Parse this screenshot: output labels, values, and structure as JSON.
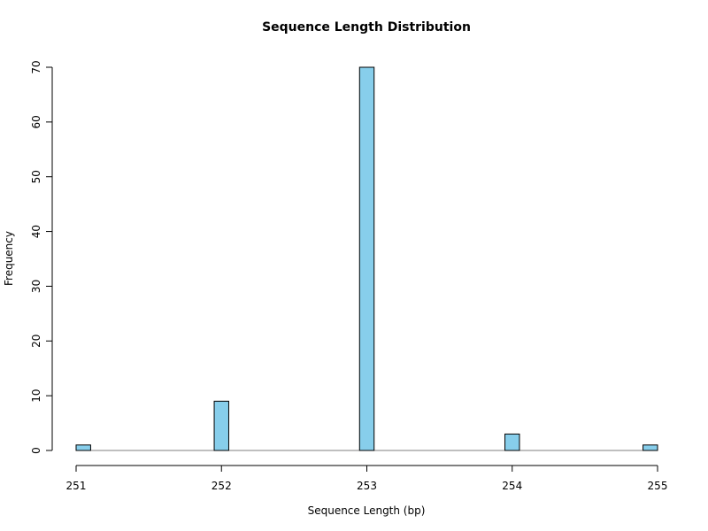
{
  "chart_data": {
    "type": "bar",
    "title": "Sequence Length Distribution",
    "xlabel": "Sequence Length (bp)",
    "ylabel": "Frequency",
    "x": [
      251,
      252,
      253,
      254,
      255
    ],
    "values": [
      1,
      9,
      70,
      3,
      1
    ],
    "xlim": [
      251,
      255
    ],
    "ylim": [
      0,
      70
    ],
    "x_ticks": [
      251,
      252,
      253,
      254,
      255
    ],
    "y_ticks": [
      0,
      10,
      20,
      30,
      40,
      50,
      60,
      70
    ],
    "bin_width": 0.1,
    "bar_color": "#87CEEB",
    "edge_color": "#000000",
    "grid": false,
    "legend": "none"
  }
}
